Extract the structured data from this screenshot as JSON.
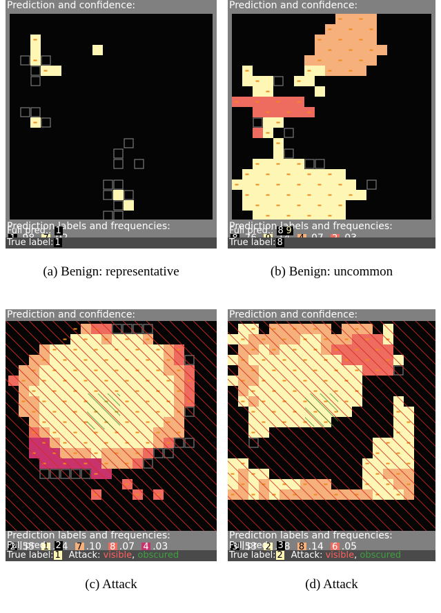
{
  "panels": [
    {
      "id": "a",
      "header": "Prediction and confidence:",
      "legend_title": "Prediction labels and frequencies:",
      "labels": [
        {
          "label": "1",
          "freq": ".98",
          "color": "#000000",
          "text_color": "#ffffff"
        },
        {
          "label": "7",
          "freq": ".02",
          "color": "#fdf6b5",
          "text_color": "#000000"
        }
      ],
      "full_pred_label": "Full pred.:",
      "full_pred": [
        {
          "label": "1",
          "color": "#000000",
          "text_color": "#ffffff"
        }
      ],
      "true_label_text": "True label:",
      "true_label": {
        "label": "1",
        "color": "#000000",
        "text_color": "#ffffff"
      },
      "attack": null,
      "caption": "(a) Benign: representative",
      "hatch": null
    },
    {
      "id": "b",
      "header": "Prediction and confidence:",
      "legend_title": "Prediction labels and frequencies:",
      "labels": [
        {
          "label": "8",
          "freq": ".76",
          "color": "#000000",
          "text_color": "#ffffff"
        },
        {
          "label": "9",
          "freq": ".14",
          "color": "#fdf6b5",
          "text_color": "#000000"
        },
        {
          "label": "4",
          "freq": ".07",
          "color": "#f5b07b",
          "text_color": "#000000"
        },
        {
          "label": "2",
          "freq": ".03",
          "color": "#ee6b5f",
          "text_color": "#ffffff"
        }
      ],
      "full_pred_label": "Full pred.:",
      "full_pred": [
        {
          "label": "8",
          "color": "#000000",
          "text_color": "#ffffff"
        },
        {
          "label": "9",
          "color": "#000000",
          "text_color": "#fdf6b5"
        }
      ],
      "true_label_text": "True label:",
      "true_label": {
        "label": "8",
        "color": "#000000",
        "text_color": "#ffffff"
      },
      "attack": null,
      "caption": "(b) Benign: uncommon",
      "hatch": null
    },
    {
      "id": "c",
      "header": "Prediction and confidence:",
      "legend_title": "Prediction labels and frequencies:",
      "labels": [
        {
          "label": "2",
          "freq": ".55",
          "color": "#000000",
          "text_color": "#ffffff"
        },
        {
          "label": "1",
          "freq": ".24",
          "color": "#fdf6b5",
          "text_color": "#000000"
        },
        {
          "label": "7",
          "freq": ".10",
          "color": "#f5b07b",
          "text_color": "#000000"
        },
        {
          "label": "8",
          "freq": ".07",
          "color": "#ee6b5f",
          "text_color": "#ffffff"
        },
        {
          "label": "4",
          "freq": ".03",
          "color": "#c8336e",
          "text_color": "#ffffff"
        }
      ],
      "full_pred_label": "Full pred.:",
      "full_pred": [
        {
          "label": "2",
          "color": "#000000",
          "text_color": "#ffffff"
        }
      ],
      "true_label_text": "True label:",
      "true_label": {
        "label": "1",
        "color": "#fdf6b5",
        "text_color": "#000000"
      },
      "attack": {
        "prefix": "Attack:",
        "visible": "visible",
        "sep": ",",
        "obscured": "obscured"
      },
      "caption": "(c) Attack",
      "hatch": "red"
    },
    {
      "id": "d",
      "header": "Prediction and confidence:",
      "legend_title": "Prediction labels and frequencies:",
      "labels": [
        {
          "label": "3",
          "freq": ".53",
          "color": "#000000",
          "text_color": "#ffffff"
        },
        {
          "label": "2",
          "freq": ".28",
          "color": "#fdf6b5",
          "text_color": "#000000"
        },
        {
          "label": "8",
          "freq": ".14",
          "color": "#f5b07b",
          "text_color": "#000000"
        },
        {
          "label": "6",
          "freq": ".05",
          "color": "#ee6b5f",
          "text_color": "#ffffff"
        }
      ],
      "full_pred_label": "Full pred.:",
      "full_pred": [
        {
          "label": "3",
          "color": "#000000",
          "text_color": "#ffffff"
        }
      ],
      "true_label_text": "True label:",
      "true_label": {
        "label": "2",
        "color": "#fdf6b5",
        "text_color": "#000000"
      },
      "attack": {
        "prefix": "Attack:",
        "visible": "visible",
        "sep": ",",
        "obscured": "obscured"
      },
      "caption": "(d) Attack",
      "hatch": "red"
    }
  ],
  "palette": {
    "black": "#050505",
    "cream": "#fdf6b5",
    "peach": "#f5b07b",
    "salmon": "#ee6b5f",
    "magenta": "#c8336e",
    "outline": "#7a7a7a",
    "dot": "#f08a1c",
    "hatch_red": "#d42a1e",
    "hatch_green": "#2f8f2f"
  }
}
